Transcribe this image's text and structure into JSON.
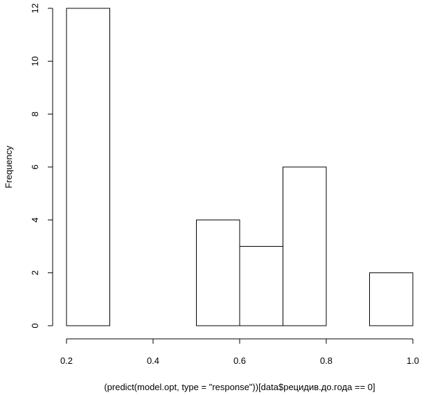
{
  "chart_data": {
    "type": "bar",
    "title": "",
    "xlabel": "(predict(model.opt, type = \"response\"))[data$рецидив.до.года == 0]",
    "ylabel": "Frequency",
    "bins": [
      {
        "from": 0.2,
        "to": 0.3,
        "count": 12
      },
      {
        "from": 0.3,
        "to": 0.4,
        "count": 0
      },
      {
        "from": 0.4,
        "to": 0.5,
        "count": 0
      },
      {
        "from": 0.5,
        "to": 0.6,
        "count": 4
      },
      {
        "from": 0.6,
        "to": 0.7,
        "count": 3
      },
      {
        "from": 0.7,
        "to": 0.8,
        "count": 6
      },
      {
        "from": 0.8,
        "to": 0.9,
        "count": 0
      },
      {
        "from": 0.9,
        "to": 1.0,
        "count": 2
      }
    ],
    "xlim": [
      0.2,
      1.0
    ],
    "ylim": [
      0,
      12
    ],
    "x_ticks": [
      "0.2",
      "0.4",
      "0.6",
      "0.8",
      "1.0"
    ],
    "y_ticks": [
      "0",
      "2",
      "4",
      "6",
      "8",
      "10",
      "12"
    ],
    "bar_fill": "#ffffff",
    "bar_stroke": "#000000",
    "grid": false,
    "legend": "none"
  }
}
